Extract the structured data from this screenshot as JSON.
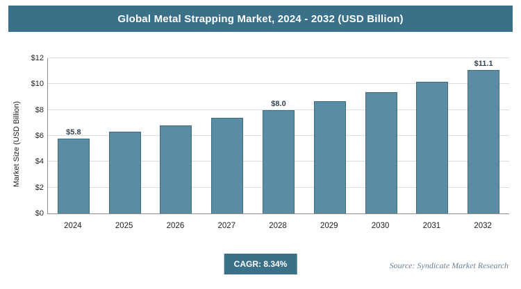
{
  "header": {
    "title": "Global Metal Strapping Market, 2024 - 2032 (USD Billion)"
  },
  "footer": {
    "cagr_label": "CAGR: 8.34%",
    "source": "Source: Syndicate Market Research"
  },
  "colors": {
    "accent": "#3A7189",
    "bar_fill": "#5A8CA4",
    "bar_border": "#3E6B80"
  },
  "chart_data": {
    "type": "bar",
    "title": "Global Metal Strapping Market, 2024 - 2032 (USD Billion)",
    "categories": [
      "2024",
      "2025",
      "2026",
      "2027",
      "2028",
      "2029",
      "2030",
      "2031",
      "2032"
    ],
    "values": [
      5.8,
      6.3,
      6.8,
      7.4,
      8.0,
      8.7,
      9.4,
      10.2,
      11.1
    ],
    "value_labels": [
      "$5.8",
      "",
      "",
      "",
      "$8.0",
      "",
      "",
      "",
      "$11.1"
    ],
    "xlabel": "",
    "ylabel": "Market Size (USD Billion)",
    "ylim": [
      0,
      12
    ],
    "ytick_step": 2,
    "ytick_prefix": "$",
    "grid": true,
    "legend": "none",
    "annotation": "CAGR: 8.34%"
  }
}
